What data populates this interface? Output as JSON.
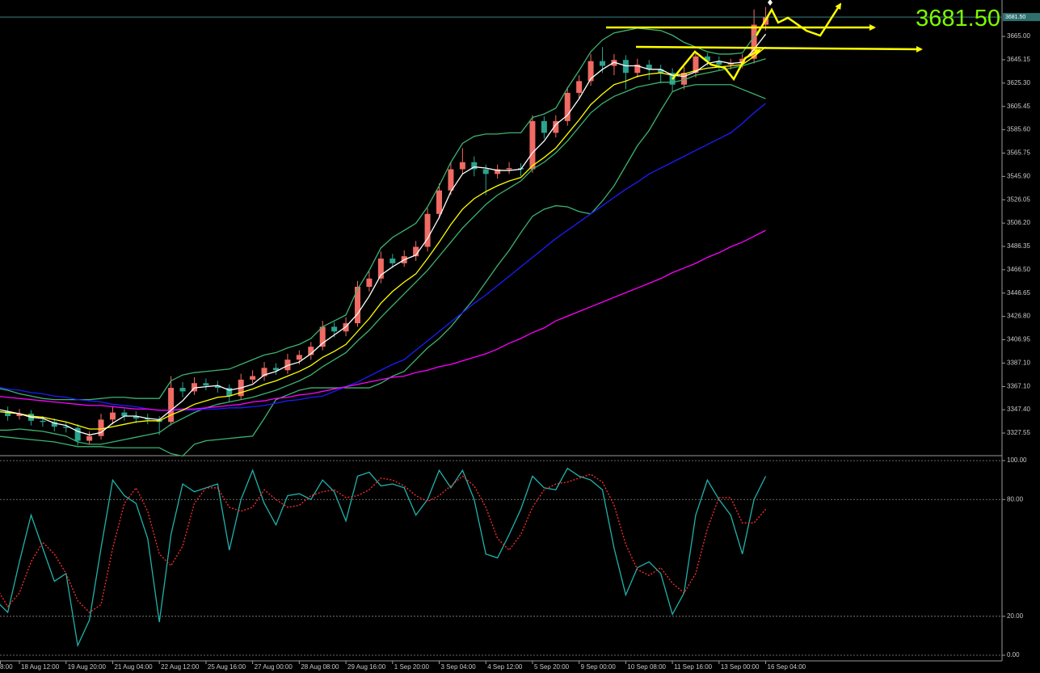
{
  "chart_data": [
    {
      "type": "candlestick",
      "categories": [
        "8:00",
        null,
        null,
        null,
        "18 Aug 12:00",
        null,
        null,
        null,
        "19 Aug 20:00",
        null,
        null,
        null,
        "21 Aug 04:00",
        null,
        null,
        null,
        "22 Aug 12:00",
        null,
        null,
        null,
        "25 Aug 16:00",
        null,
        null,
        null,
        "27 Aug 00:00",
        null,
        null,
        null,
        "28 Aug 08:00",
        null,
        null,
        null,
        "29 Aug 16:00",
        null,
        null,
        null,
        "1 Sep 20:00",
        null,
        null,
        null,
        "3 Sep 04:00",
        null,
        null,
        null,
        "4 Sep 12:00",
        null,
        null,
        null,
        "5 Sep 20:00",
        null,
        null,
        null,
        "9 Sep 00:00",
        null,
        null,
        null,
        "10 Sep 08:00",
        null,
        null,
        null,
        "11 Sep 16:00",
        null,
        null,
        null,
        "13 Sep 00:00",
        null,
        null,
        null,
        "16 Sep 04:00"
      ],
      "open": [
        null,
        null,
        3350,
        3346,
        3342,
        3344,
        3338,
        3337,
        3333,
        3332,
        3321,
        3325,
        3339,
        3345,
        3342,
        3340,
        3339,
        3337,
        3366,
        3363,
        3370,
        3368,
        3366,
        3359,
        3373,
        3376,
        3383,
        3381,
        3390,
        3394,
        3401,
        3418,
        3414,
        3421,
        3452,
        3459,
        3476,
        3472,
        3478,
        3486,
        3514,
        3534,
        3552,
        3558,
        3552,
        3548,
        3552,
        3553,
        3552,
        3593,
        3583,
        3593,
        3617,
        3627,
        3644,
        3640,
        3645,
        3634,
        3641,
        3637,
        3634,
        3624,
        3634,
        3648,
        3644,
        3641,
        3642,
        3646,
        3675
      ],
      "high": [
        null,
        null,
        3354,
        3350,
        3348,
        3347,
        3342,
        3340,
        3337,
        3335,
        3329,
        3344,
        3350,
        3348,
        3346,
        3344,
        3342,
        3376,
        3371,
        3375,
        3374,
        3372,
        3369,
        3378,
        3381,
        3388,
        3387,
        3395,
        3398,
        3405,
        3423,
        3422,
        3426,
        3457,
        3465,
        3482,
        3480,
        3483,
        3491,
        3519,
        3540,
        3558,
        3570,
        3563,
        3556,
        3556,
        3558,
        3557,
        3598,
        3597,
        3598,
        3622,
        3632,
        3650,
        3656,
        3650,
        3649,
        3646,
        3645,
        3641,
        3638,
        3639,
        3652,
        3651,
        3648,
        3646,
        3650,
        3688,
        3690
      ],
      "low": [
        null,
        null,
        3342,
        3338,
        3339,
        3334,
        3333,
        3329,
        3328,
        3317,
        3318,
        3322,
        3335,
        3338,
        3336,
        3335,
        3326,
        3334,
        3358,
        3360,
        3364,
        3362,
        3354,
        3356,
        3370,
        3372,
        3377,
        3378,
        3386,
        3390,
        3398,
        3409,
        3410,
        3418,
        3448,
        3455,
        3468,
        3469,
        3474,
        3482,
        3510,
        3530,
        3548,
        3546,
        3530,
        3544,
        3548,
        3546,
        3549,
        3578,
        3579,
        3589,
        3612,
        3623,
        3634,
        3632,
        3620,
        3630,
        3628,
        3625,
        3618,
        3620,
        3630,
        3640,
        3636,
        3637,
        3638,
        3642,
        3670
      ],
      "close": [
        null,
        null,
        3346,
        3342,
        3344,
        3338,
        3337,
        3333,
        3332,
        3321,
        3325,
        3339,
        3345,
        3342,
        3340,
        3339,
        3337,
        3366,
        3363,
        3370,
        3368,
        3366,
        3359,
        3373,
        3376,
        3383,
        3381,
        3390,
        3394,
        3401,
        3418,
        3414,
        3421,
        3452,
        3459,
        3476,
        3472,
        3478,
        3486,
        3514,
        3534,
        3552,
        3558,
        3552,
        3548,
        3552,
        3553,
        3552,
        3593,
        3583,
        3593,
        3617,
        3627,
        3644,
        3640,
        3645,
        3634,
        3641,
        3637,
        3634,
        3624,
        3634,
        3648,
        3644,
        3641,
        3642,
        3646,
        3675,
        3681.5
      ],
      "up_color": "#ef6b63",
      "down_color": "#2aa38f",
      "series": [
        {
          "color": "#3cb371",
          "values": [
            null,
            null,
            3366,
            3364,
            3361,
            3359,
            3357,
            3356,
            3356,
            3356,
            3356,
            3357,
            3358,
            3358,
            3357,
            3357,
            3357,
            3372,
            3377,
            3379,
            3380,
            3381,
            3382,
            3386,
            3390,
            3394,
            3396,
            3400,
            3403,
            3408,
            3418,
            3423,
            3428,
            3450,
            3466,
            3485,
            3494,
            3500,
            3506,
            3520,
            3538,
            3558,
            3574,
            3580,
            3582,
            3582,
            3583,
            3583,
            3596,
            3599,
            3604,
            3621,
            3636,
            3652,
            3662,
            3668,
            3670,
            3672,
            3671,
            3670,
            3666,
            3660,
            3656,
            3652,
            3650,
            3650,
            3651,
            3665,
            3678
          ]
        },
        {
          "color": "#3cb371",
          "values": [
            null,
            null,
            3330,
            3330,
            3331,
            3330,
            3329,
            3327,
            3325,
            3320,
            3318,
            3318,
            3320,
            3322,
            3324,
            3326,
            3328,
            3335,
            3340,
            3345,
            3349,
            3352,
            3354,
            3356,
            3358,
            3361,
            3364,
            3368,
            3372,
            3377,
            3384,
            3390,
            3396,
            3406,
            3415,
            3426,
            3436,
            3446,
            3456,
            3466,
            3478,
            3490,
            3502,
            3512,
            3522,
            3530,
            3536,
            3542,
            3552,
            3558,
            3566,
            3576,
            3588,
            3600,
            3608,
            3614,
            3618,
            3622,
            3624,
            3626,
            3626,
            3628,
            3632,
            3634,
            3636,
            3638,
            3640,
            3643,
            3646
          ]
        },
        {
          "color": "#3cb371",
          "values": [
            null,
            null,
            3325,
            3324,
            3323,
            3322,
            3321,
            3320,
            3318,
            3316,
            3316,
            3316,
            3315,
            3315,
            3315,
            3315,
            3315,
            3310,
            3308,
            3318,
            3321,
            3322,
            3323,
            3324,
            3325,
            3340,
            3356,
            3360,
            3364,
            3366,
            3366,
            3366,
            3366,
            3366,
            3366,
            3370,
            3376,
            3380,
            3390,
            3400,
            3408,
            3418,
            3430,
            3442,
            3456,
            3470,
            3483,
            3498,
            3512,
            3518,
            3521,
            3520,
            3516,
            3514,
            3525,
            3538,
            3555,
            3572,
            3585,
            3602,
            3618,
            3622,
            3624,
            3624,
            3624,
            3624,
            3620,
            3616,
            3612
          ]
        },
        {
          "color": "#1c1cff",
          "values": [
            null,
            null,
            3367,
            3365,
            3364,
            3362,
            3361,
            3359,
            3358,
            3356,
            3355,
            3354,
            3352,
            3351,
            3350,
            3348,
            3347,
            3347,
            3347,
            3347,
            3348,
            3348,
            3349,
            3349,
            3350,
            3351,
            3353,
            3355,
            3356,
            3358,
            3359,
            3363,
            3367,
            3371,
            3376,
            3381,
            3386,
            3390,
            3398,
            3406,
            3414,
            3422,
            3430,
            3438,
            3445,
            3453,
            3461,
            3469,
            3477,
            3485,
            3493,
            3500,
            3507,
            3514,
            3521,
            3528,
            3535,
            3541,
            3548,
            3553,
            3558,
            3563,
            3568,
            3573,
            3578,
            3583,
            3591,
            3600,
            3608
          ]
        },
        {
          "color": "#ff00ff",
          "values": [
            null,
            null,
            3359,
            3358,
            3357,
            3356,
            3355,
            3354,
            3353,
            3352,
            3351,
            3351,
            3350,
            3349,
            3348,
            3348,
            3347,
            3347,
            3348,
            3348,
            3349,
            3350,
            3351,
            3352,
            3354,
            3355,
            3357,
            3358,
            3360,
            3361,
            3363,
            3365,
            3367,
            3369,
            3371,
            3373,
            3375,
            3376,
            3379,
            3381,
            3384,
            3386,
            3389,
            3392,
            3395,
            3399,
            3404,
            3408,
            3413,
            3417,
            3423,
            3427,
            3431,
            3435,
            3439,
            3443,
            3447,
            3451,
            3455,
            3459,
            3464,
            3468,
            3472,
            3477,
            3481,
            3486,
            3490,
            3495,
            3500
          ]
        },
        {
          "color": "#ffff00",
          "values": [
            null,
            null,
            3346,
            3345,
            3344,
            3342,
            3341,
            3339,
            3337,
            3334,
            3331,
            3331,
            3333,
            3335,
            3337,
            3338,
            3338,
            3343,
            3347,
            3352,
            3355,
            3358,
            3359,
            3362,
            3365,
            3369,
            3372,
            3376,
            3380,
            3385,
            3392,
            3397,
            3403,
            3414,
            3425,
            3438,
            3448,
            3456,
            3463,
            3476,
            3490,
            3505,
            3518,
            3527,
            3533,
            3538,
            3542,
            3545,
            3555,
            3562,
            3570,
            3582,
            3594,
            3607,
            3616,
            3624,
            3627,
            3631,
            3633,
            3634,
            3632,
            3633,
            3636,
            3638,
            3639,
            3640,
            3641,
            3648,
            3656
          ]
        },
        {
          "color": "#ffffff",
          "values": [
            null,
            null,
            3348,
            3346,
            3344,
            3341,
            3340,
            3336,
            3334,
            3329,
            3326,
            3328,
            3336,
            3342,
            3342,
            3340,
            3339,
            3347,
            3355,
            3366,
            3367,
            3368,
            3364,
            3366,
            3369,
            3377,
            3380,
            3385,
            3388,
            3395,
            3404,
            3411,
            3418,
            3429,
            3444,
            3462,
            3469,
            3475,
            3479,
            3493,
            3511,
            3533,
            3548,
            3554,
            3553,
            3551,
            3551,
            3552,
            3566,
            3576,
            3590,
            3598,
            3612,
            3629,
            3637,
            3643,
            3640,
            3640,
            3637,
            3637,
            3632,
            3631,
            3635,
            3642,
            3644,
            3642,
            3643,
            3654,
            3667
          ]
        }
      ],
      "last_price": {
        "value": 3681.5,
        "label": "3681.50"
      },
      "ylim": [
        3309,
        3696
      ],
      "yticks": [
        3327.55,
        {
          "value": 3347.4,
          "label": "3347.40"
        },
        {
          "value": 3367.1,
          "label": "3367.10"
        },
        {
          "value": 3387.1,
          "label": "3387.10"
        },
        3406.95,
        {
          "value": 3426.8,
          "label": "3426.80"
        },
        3446.65,
        {
          "value": 3466.5,
          "label": "3466.50"
        },
        3486.35,
        {
          "value": 3506.2,
          "label": "3506.20"
        },
        3526.05,
        {
          "value": 3545.9,
          "label": "3545.90"
        },
        3565.75,
        {
          "value": 3585.6,
          "label": "3585.60"
        },
        3605.45,
        {
          "value": 3625.3,
          "label": "3625.30"
        },
        3645.15,
        {
          "value": 3665,
          "label": "3665.00"
        }
      ],
      "grid": false
    },
    {
      "type": "line",
      "series": [
        {
          "color": "#20b2aa",
          "values": [
            null,
            null,
            28,
            22,
            48,
            72,
            55,
            38,
            42,
            5,
            18,
            55,
            90,
            82,
            78,
            60,
            17,
            62,
            88,
            84,
            86,
            88,
            54,
            80,
            95,
            78,
            67,
            82,
            83,
            80,
            90,
            84,
            69,
            92,
            94,
            87,
            88,
            86,
            72,
            80,
            95,
            86,
            95,
            80,
            52,
            50,
            62,
            75,
            92,
            86,
            85,
            96,
            92,
            90,
            85,
            55,
            31,
            45,
            48,
            42,
            21,
            32,
            72,
            90,
            80,
            72,
            52,
            80,
            92
          ]
        },
        {
          "color": "#ff3030",
          "dash": true,
          "values": [
            null,
            null,
            35,
            25,
            32,
            48,
            58,
            52,
            42,
            28,
            22,
            26,
            55,
            78,
            86,
            74,
            52,
            46,
            56,
            78,
            86,
            86,
            76,
            74,
            76,
            85,
            80,
            76,
            77,
            82,
            84,
            85,
            81,
            82,
            85,
            91,
            90,
            87,
            82,
            79,
            82,
            87,
            92,
            87,
            76,
            60,
            54,
            62,
            76,
            85,
            88,
            89,
            91,
            93,
            89,
            77,
            57,
            44,
            41,
            45,
            37,
            32,
            42,
            65,
            81,
            81,
            68,
            68,
            75
          ]
        }
      ],
      "ylim": [
        -2.9,
        101.7
      ],
      "yticks": [
        {
          "value": 100,
          "label": "100.00"
        },
        {
          "value": 80,
          "label": "80.00"
        },
        {
          "value": 20,
          "label": "20.00"
        },
        {
          "value": 0,
          "label": "0.00"
        }
      ],
      "grid": "dotted"
    }
  ]
}
